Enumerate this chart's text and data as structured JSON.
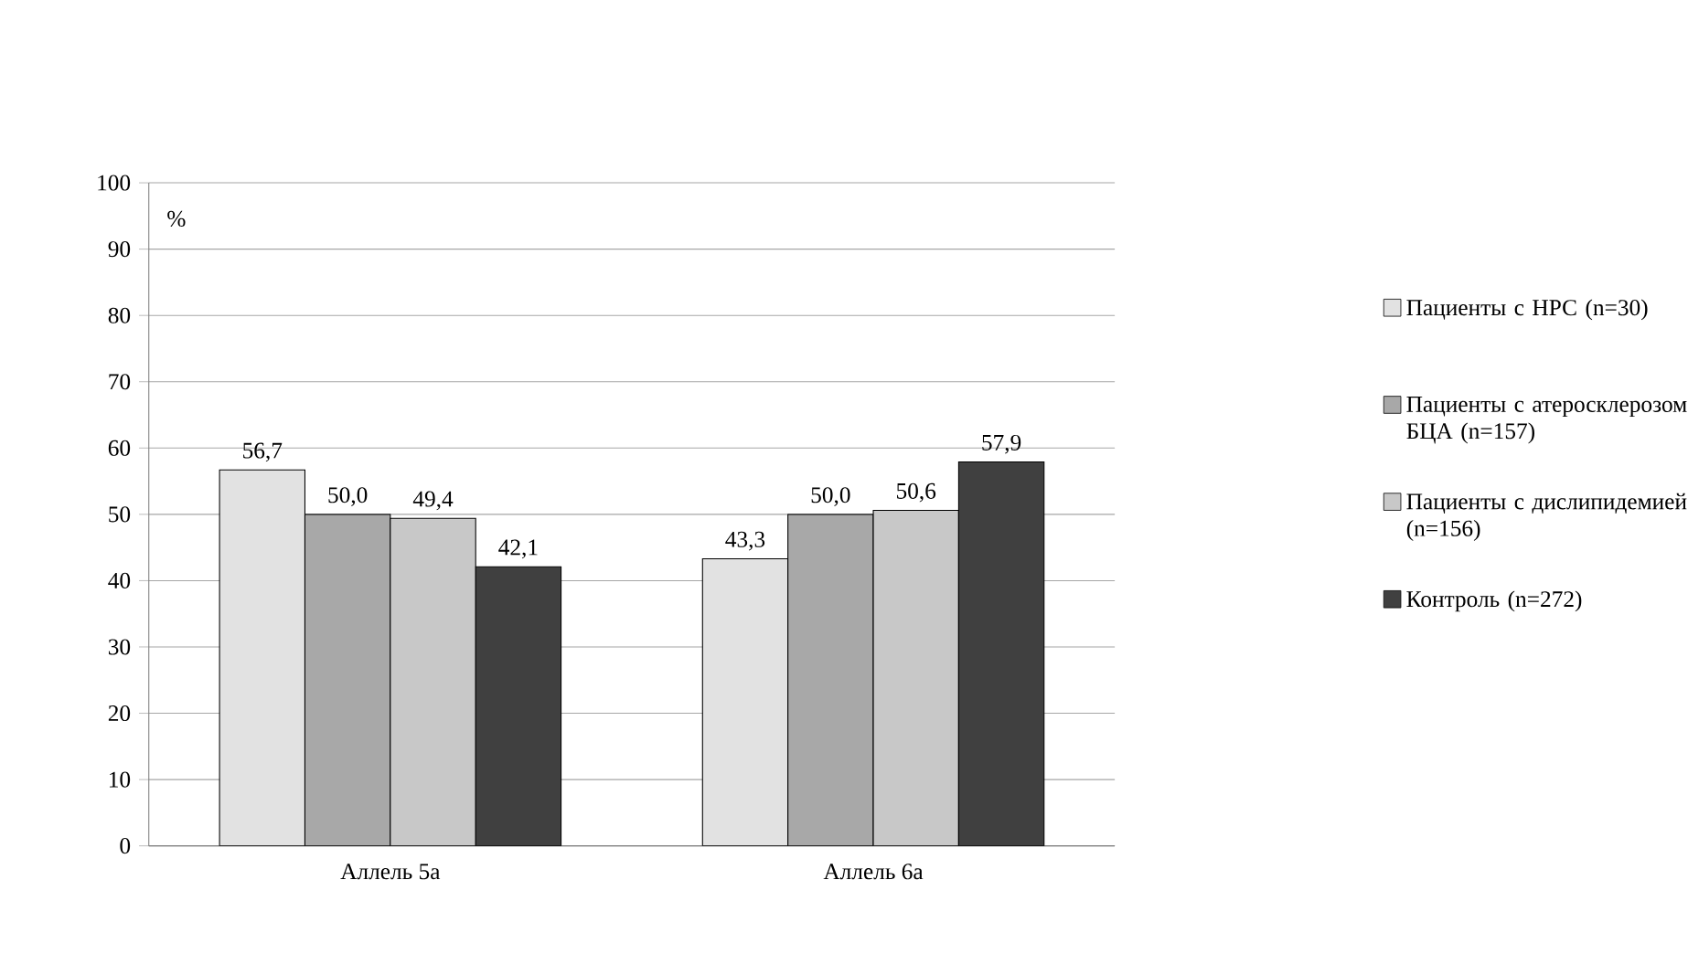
{
  "chart_data": {
    "type": "bar",
    "ylabel": "%",
    "categories": [
      "Аллель 5а",
      "Аллель 6а"
    ],
    "series": [
      {
        "name": "Пациенты с НРС (n=30)",
        "color": "#e2e2e2",
        "values": [
          56.7,
          43.3
        ],
        "value_labels": [
          "56,7",
          "43,3"
        ]
      },
      {
        "name": "Пациенты с атеросклерозом БЦА (n=157)",
        "color": "#a8a8a8",
        "values": [
          50.0,
          50.0
        ],
        "value_labels": [
          "50,0",
          "50,0"
        ]
      },
      {
        "name": "Пациенты с дислипидемией (n=156)",
        "color": "#c8c8c8",
        "values": [
          49.4,
          50.6
        ],
        "value_labels": [
          "49,4",
          "50,6"
        ]
      },
      {
        "name": "Контроль (n=272)",
        "color": "#404040",
        "values": [
          42.1,
          57.9
        ],
        "value_labels": [
          "42,1",
          "57,9"
        ]
      }
    ],
    "ylim": [
      0,
      100
    ],
    "yticks": [
      0,
      10,
      20,
      30,
      40,
      50,
      60,
      70,
      80,
      90,
      100
    ],
    "grid": "y",
    "legend": "right"
  }
}
